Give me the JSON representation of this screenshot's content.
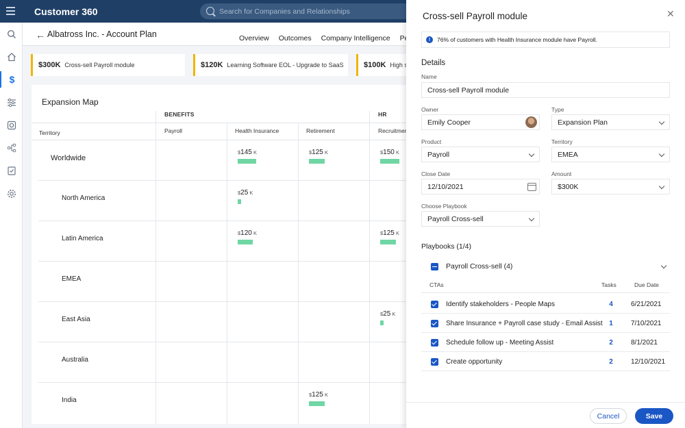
{
  "app": {
    "title": "Customer 360"
  },
  "search": {
    "placeholder": "Search for Companies and Relationships"
  },
  "sidebar": {
    "items": [
      {
        "icon": "search-icon"
      },
      {
        "icon": "home-icon"
      },
      {
        "icon": "dollar-icon",
        "active": true
      },
      {
        "icon": "sliders-icon"
      },
      {
        "icon": "camera-icon"
      },
      {
        "icon": "hierarchy-icon"
      },
      {
        "icon": "clipboard-icon"
      },
      {
        "icon": "gear-icon"
      }
    ]
  },
  "header": {
    "title": "Albatross Inc. - Account Plan",
    "tabs": [
      "Overview",
      "Outcomes",
      "Company Intelligence",
      "Peo"
    ]
  },
  "cards": [
    {
      "amount": "$300K",
      "title": "Cross-sell Payroll module"
    },
    {
      "amount": "$120K",
      "title": "Learning Software EOL - Upgrade to SaaS"
    },
    {
      "amount": "$100K",
      "title": "High su"
    }
  ],
  "map": {
    "title": "Expansion Map",
    "territory_header": "Territory",
    "groups": [
      "BENEFITS",
      "HR"
    ],
    "columns": [
      "Payroll",
      "Health Insurance",
      "Retirement",
      "Recruitmen"
    ],
    "rows": [
      {
        "label": "Worldwide",
        "cells": {
          "1": {
            "value": "145",
            "fill": 0.58
          },
          "2": {
            "value": "125",
            "fill": 0.5
          },
          "3": {
            "value": "150",
            "fill": 0.6
          }
        }
      },
      {
        "label": "North America",
        "cells": {
          "1": {
            "value": "25",
            "fill": 0.1
          }
        }
      },
      {
        "label": "Latin America",
        "cells": {
          "1": {
            "value": "120",
            "fill": 0.48
          },
          "3": {
            "value": "125",
            "fill": 0.5
          }
        }
      },
      {
        "label": "EMEA",
        "cells": {}
      },
      {
        "label": "East Asia",
        "cells": {
          "3": {
            "value": "25",
            "fill": 0.1
          }
        }
      },
      {
        "label": "Australia",
        "cells": {}
      },
      {
        "label": "India",
        "cells": {
          "2": {
            "value": "125",
            "fill": 0.5
          }
        }
      }
    ],
    "currency": "$",
    "unit": "K"
  },
  "panel": {
    "title": "Cross-sell Payroll module",
    "banner": "76% of customers with Health Insurance module have Payroll.",
    "details_heading": "Details",
    "name_label": "Name",
    "name_value": "Cross-sell Payroll module",
    "owner_label": "Owner",
    "owner_value": "Emily Cooper",
    "type_label": "Type",
    "type_value": "Expansion Plan",
    "product_label": "Product",
    "product_value": "Payroll",
    "territory_label": "Territory",
    "territory_value": "EMEA",
    "close_date_label": "Close Date",
    "close_date_value": "12/10/2021",
    "amount_label": "Amount",
    "amount_value": "$300K",
    "playbook_label": "Choose Playbook",
    "playbook_value": "Payroll Cross-sell",
    "playbooks_heading": "Playbooks (1/4)",
    "playbook_group": "Payroll Cross-sell (4)",
    "cta_headers": {
      "ctas": "CTAs",
      "tasks": "Tasks",
      "due": "Due Date"
    },
    "ctas": [
      {
        "name": "Identify stakeholders - People Maps",
        "tasks": "4",
        "due": "6/21/2021"
      },
      {
        "name": "Share Insurance + Payroll case study - Email Assist",
        "tasks": "1",
        "due": "7/10/2021"
      },
      {
        "name": "Schedule follow up - Meeting Assist",
        "tasks": "2",
        "due": "8/1/2021"
      },
      {
        "name": "Create opportunity",
        "tasks": "2",
        "due": "12/10/2021"
      }
    ],
    "cancel_label": "Cancel",
    "save_label": "Save"
  },
  "colors": {
    "topbar": "#1f3f66",
    "accent": "#1a56c4",
    "bar": "#6fd6a4",
    "card_accent": "#f0b400"
  }
}
